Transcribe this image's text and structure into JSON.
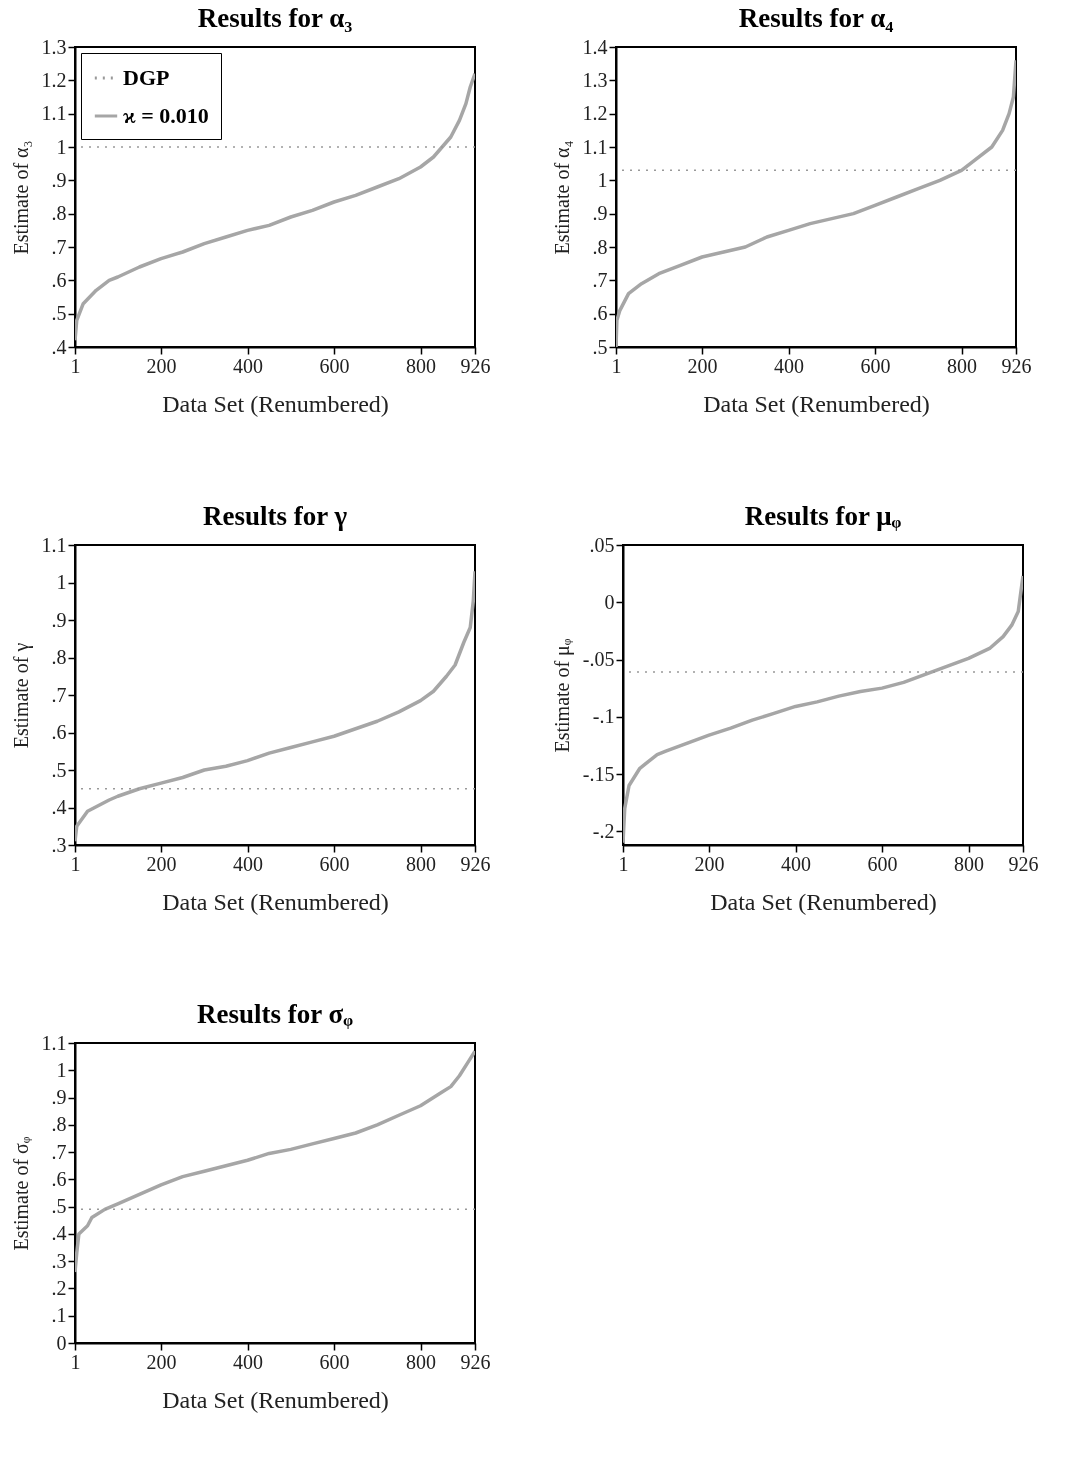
{
  "chart_data": [
    {
      "type": "line",
      "title": "Results for α₃",
      "xlabel": "Data Set (Renumbered)",
      "ylabel": "Estimate of α₃",
      "legend": "top left",
      "xlim": [
        1,
        926
      ],
      "xticks": [
        1,
        200,
        400,
        600,
        800,
        926
      ],
      "ylim": [
        0.4,
        1.3
      ],
      "yticks": [
        {
          "value": 0.4,
          "label": ".4"
        },
        {
          "value": 0.5,
          "label": ".5"
        },
        {
          "value": 0.6,
          "label": ".6"
        },
        {
          "value": 0.7,
          "label": ".7"
        },
        {
          "value": 0.8,
          "label": ".8"
        },
        {
          "value": 0.9,
          "label": ".9"
        },
        1,
        1.1,
        1.2,
        1.3
      ],
      "ref_lines": [
        {
          "axis": "y",
          "value": 1.0,
          "label": "DGP",
          "line_style": "dotted",
          "color": "#999999"
        }
      ],
      "series": [
        {
          "name": "ϰ = 0.010",
          "color": "#a6a6a6",
          "x": [
            1,
            5,
            20,
            50,
            80,
            100,
            150,
            200,
            250,
            300,
            350,
            400,
            450,
            500,
            550,
            600,
            650,
            700,
            750,
            800,
            830,
            850,
            870,
            890,
            905,
            915,
            926
          ],
          "values": [
            0.42,
            0.48,
            0.53,
            0.57,
            0.6,
            0.61,
            0.64,
            0.665,
            0.685,
            0.71,
            0.73,
            0.75,
            0.765,
            0.79,
            0.81,
            0.835,
            0.855,
            0.88,
            0.905,
            0.94,
            0.97,
            1.0,
            1.03,
            1.08,
            1.13,
            1.18,
            1.22
          ]
        }
      ]
    },
    {
      "type": "line",
      "title": "Results for α₄",
      "xlabel": "Data Set (Renumbered)",
      "ylabel": "Estimate of α₄",
      "xlim": [
        1,
        926
      ],
      "xticks": [
        1,
        200,
        400,
        600,
        800,
        926
      ],
      "ylim": [
        0.5,
        1.4
      ],
      "yticks": [
        {
          "value": 0.5,
          "label": ".5"
        },
        {
          "value": 0.6,
          "label": ".6"
        },
        {
          "value": 0.7,
          "label": ".7"
        },
        {
          "value": 0.8,
          "label": ".8"
        },
        {
          "value": 0.9,
          "label": ".9"
        },
        1,
        1.1,
        1.2,
        1.3,
        1.4
      ],
      "ref_lines": [
        {
          "axis": "y",
          "value": 1.03,
          "line_style": "dotted",
          "color": "#999999"
        }
      ],
      "series": [
        {
          "color": "#a6a6a6",
          "x": [
            1,
            3,
            10,
            30,
            60,
            100,
            150,
            200,
            250,
            300,
            350,
            400,
            450,
            500,
            550,
            600,
            650,
            700,
            750,
            800,
            830,
            870,
            895,
            910,
            920,
            926
          ],
          "values": [
            0.5,
            0.58,
            0.61,
            0.66,
            0.69,
            0.72,
            0.745,
            0.77,
            0.785,
            0.8,
            0.83,
            0.85,
            0.87,
            0.885,
            0.9,
            0.925,
            0.95,
            0.975,
            1.0,
            1.03,
            1.06,
            1.1,
            1.15,
            1.2,
            1.25,
            1.36
          ]
        }
      ]
    },
    {
      "type": "line",
      "title": "Results for γ",
      "xlabel": "Data Set (Renumbered)",
      "ylabel": "Estimate of γ",
      "xlim": [
        1,
        926
      ],
      "xticks": [
        1,
        200,
        400,
        600,
        800,
        926
      ],
      "ylim": [
        0.3,
        1.1
      ],
      "yticks": [
        {
          "value": 0.3,
          "label": ".3"
        },
        {
          "value": 0.4,
          "label": ".4"
        },
        {
          "value": 0.5,
          "label": ".5"
        },
        {
          "value": 0.6,
          "label": ".6"
        },
        {
          "value": 0.7,
          "label": ".7"
        },
        {
          "value": 0.8,
          "label": ".8"
        },
        {
          "value": 0.9,
          "label": ".9"
        },
        1,
        1.1
      ],
      "ref_lines": [
        {
          "axis": "y",
          "value": 0.45,
          "line_style": "dotted",
          "color": "#999999"
        }
      ],
      "series": [
        {
          "color": "#a6a6a6",
          "x": [
            1,
            5,
            30,
            80,
            100,
            150,
            200,
            250,
            300,
            350,
            400,
            450,
            500,
            550,
            600,
            650,
            700,
            750,
            800,
            830,
            860,
            880,
            900,
            915,
            922,
            926
          ],
          "values": [
            0.31,
            0.35,
            0.39,
            0.42,
            0.43,
            0.45,
            0.465,
            0.48,
            0.5,
            0.51,
            0.525,
            0.545,
            0.56,
            0.575,
            0.59,
            0.61,
            0.63,
            0.655,
            0.685,
            0.71,
            0.75,
            0.78,
            0.84,
            0.88,
            0.95,
            1.03
          ]
        }
      ]
    },
    {
      "type": "line",
      "title": "Results for μᵩ",
      "xlabel": "Data Set (Renumbered)",
      "ylabel": "Estimate of μᵩ",
      "xlim": [
        1,
        926
      ],
      "xticks": [
        1,
        200,
        400,
        600,
        800,
        926
      ],
      "ylim": [
        -0.212,
        0.05
      ],
      "yticks": [
        {
          "value": -0.2,
          "label": "-.2"
        },
        {
          "value": -0.15,
          "label": "-.15"
        },
        {
          "value": -0.1,
          "label": "-.1"
        },
        {
          "value": -0.05,
          "label": "-.05"
        },
        0,
        {
          "value": 0.05,
          "label": ".05"
        }
      ],
      "ref_lines": [
        {
          "axis": "y",
          "value": -0.061,
          "line_style": "dotted",
          "color": "#999999"
        }
      ],
      "series": [
        {
          "color": "#a6a6a6",
          "x": [
            1,
            5,
            15,
            40,
            80,
            100,
            150,
            200,
            250,
            300,
            350,
            400,
            450,
            500,
            550,
            600,
            650,
            700,
            750,
            800,
            850,
            880,
            900,
            915,
            926
          ],
          "values": [
            -0.21,
            -0.18,
            -0.16,
            -0.145,
            -0.133,
            -0.13,
            -0.123,
            -0.116,
            -0.11,
            -0.103,
            -0.097,
            -0.091,
            -0.087,
            -0.082,
            -0.078,
            -0.075,
            -0.07,
            -0.063,
            -0.056,
            -0.049,
            -0.04,
            -0.03,
            -0.02,
            -0.008,
            0.023
          ]
        }
      ]
    },
    {
      "type": "line",
      "title": "Results for σᵩ",
      "xlabel": "Data Set (Renumbered)",
      "ylabel": "Estimate of σᵩ",
      "xlim": [
        1,
        926
      ],
      "xticks": [
        1,
        200,
        400,
        600,
        800,
        926
      ],
      "ylim": [
        0,
        1.1
      ],
      "yticks": [
        0,
        {
          "value": 0.1,
          "label": ".1"
        },
        {
          "value": 0.2,
          "label": ".2"
        },
        {
          "value": 0.3,
          "label": ".3"
        },
        {
          "value": 0.4,
          "label": ".4"
        },
        {
          "value": 0.5,
          "label": ".5"
        },
        {
          "value": 0.6,
          "label": ".6"
        },
        {
          "value": 0.7,
          "label": ".7"
        },
        {
          "value": 0.8,
          "label": ".8"
        },
        {
          "value": 0.9,
          "label": ".9"
        },
        1,
        1.1
      ],
      "ref_lines": [
        {
          "axis": "y",
          "value": 0.49,
          "line_style": "dotted",
          "color": "#999999"
        }
      ],
      "series": [
        {
          "color": "#a6a6a6",
          "x": [
            1,
            5,
            10,
            30,
            40,
            70,
            100,
            150,
            200,
            250,
            300,
            350,
            400,
            450,
            500,
            550,
            600,
            650,
            700,
            750,
            800,
            850,
            870,
            890,
            910,
            926
          ],
          "values": [
            0.26,
            0.33,
            0.4,
            0.43,
            0.46,
            0.49,
            0.51,
            0.545,
            0.58,
            0.61,
            0.63,
            0.65,
            0.67,
            0.695,
            0.71,
            0.73,
            0.75,
            0.77,
            0.8,
            0.835,
            0.87,
            0.92,
            0.94,
            0.98,
            1.03,
            1.07
          ]
        }
      ]
    }
  ]
}
